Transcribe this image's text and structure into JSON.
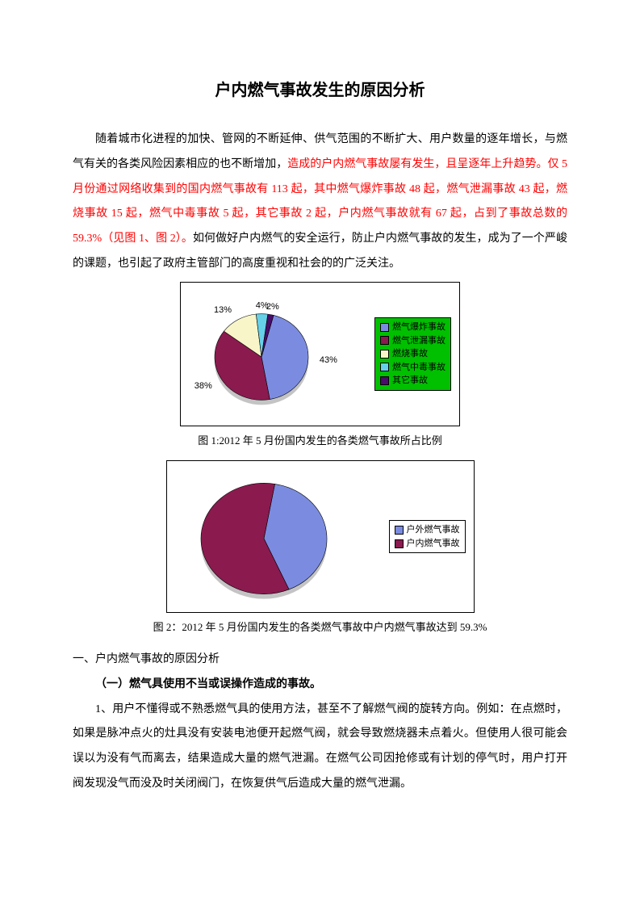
{
  "title": "户内燃气事故发生的原因分析",
  "p1a": "随着城市化进程的加快、管网的不断延伸、供气范围的不断扩大、用户数量的逐年增长，与燃气有关的各类风险因素相应的也不断增加，",
  "p1b": "造成的户内燃气事故屡有发生，且呈逐年上升趋势。仅 5 月份通过网络收集到的国内燃气事故有 113 起，其中燃气爆炸事故 48 起，燃气泄漏事故 43 起，燃烧事故 15 起，燃气中毒事故 5 起，其它事故 2 起，户内燃气事故就有 67 起，占到了事故总数的 59.3%（见图 1、图 2）。",
  "p1c": "如何做好户内燃气的安全运行，防止户内燃气事故的发生，成为了一个严峻的课题，也引起了政府主管部门的高度重视和社会的的广泛关注。",
  "chart1": {
    "type": "pie",
    "slices": [
      {
        "label": "43%",
        "value": 43,
        "color": "#7b8ce0"
      },
      {
        "label": "38%",
        "value": 38,
        "color": "#8b1a4f"
      },
      {
        "label": "13%",
        "value": 13,
        "color": "#f8f5c8"
      },
      {
        "label": "4%",
        "value": 4,
        "color": "#66d0e8"
      },
      {
        "label": "2%",
        "value": 2,
        "color": "#4a0d6b"
      }
    ],
    "legend_bg": "#00c000",
    "legend": [
      {
        "label": "燃气爆炸事故",
        "color": "#7b8ce0"
      },
      {
        "label": "燃气泄漏事故",
        "color": "#8b1a4f"
      },
      {
        "label": "燃烧事故",
        "color": "#f8f5c8"
      },
      {
        "label": "燃气中毒事故",
        "color": "#66d0e8"
      },
      {
        "label": "其它事故",
        "color": "#4a0d6b"
      }
    ],
    "caption": "图 1:2012 年 5 月份国内发生的各类燃气事故所占比例"
  },
  "chart2": {
    "type": "pie",
    "slices": [
      {
        "value": 40.7,
        "color": "#7b8ce0"
      },
      {
        "value": 59.3,
        "color": "#8b1a4f"
      }
    ],
    "legend_bg": "#ffffff",
    "legend": [
      {
        "label": "户外燃气事故",
        "color": "#7b8ce0"
      },
      {
        "label": "户内燃气事故",
        "color": "#8b1a4f"
      }
    ],
    "caption": "图 2：2012 年 5 月份国内发生的各类燃气事故中户内燃气事故达到 59.3%"
  },
  "sec1": "一、户内燃气事故的原因分析",
  "sec1_1": "（一）燃气具使用不当或误操作造成的事故。",
  "sec1_1_p": "1、用户不懂得或不熟悉燃气具的使用方法，甚至不了解燃气阀的旋转方向。例如：在点燃时，如果是脉冲点火的灶具没有安装电池便开起燃气阀，就会导致燃烧器未点着火。但使用人很可能会误以为没有气而离去，结果造成大量的燃气泄漏。在燃气公司因抢修或有计划的停气时，用户打开阀发现没气而没及时关闭阀门，在恢复供气后造成大量的燃气泄漏。"
}
